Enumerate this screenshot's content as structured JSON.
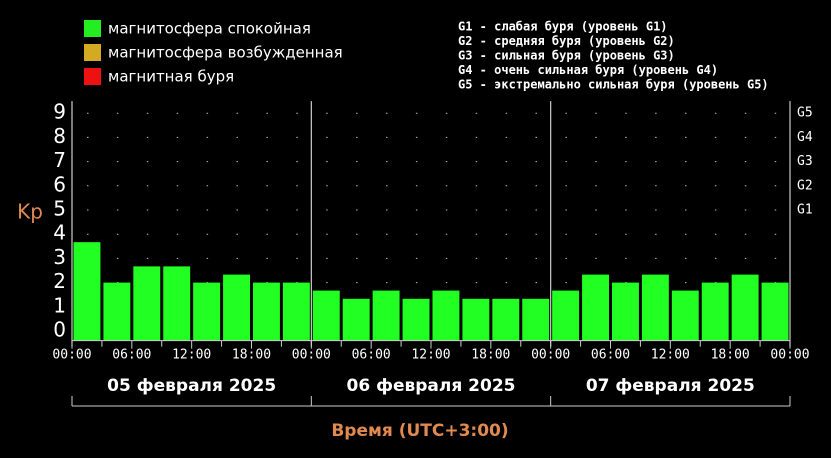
{
  "chart_data": {
    "type": "bar",
    "legend": [
      {
        "label": "магнитосфера спокойная",
        "color": "#22ee22"
      },
      {
        "label": "магнитосфера возбужденная",
        "color": "#d4aa22"
      },
      {
        "label": "магнитная буря",
        "color": "#ee1111"
      }
    ],
    "storm_levels": [
      "G1 - слабая буря (уровень G1)",
      "G2 - средняя буря (уровень G2)",
      "G3 - сильная буря (уровень G3)",
      "G4 - очень сильная буря (уровень G4)",
      "G5 - экстремально сильная буря (уровень G5)"
    ],
    "y_label": "Kp",
    "x_label": "Время (UTC+3:00)",
    "days": [
      "05 февраля 2025",
      "06 февраля 2025",
      "07 февраля 2025"
    ],
    "x": [
      1.5,
      4.5,
      7.5,
      10.5,
      13.5,
      16.5,
      19.5,
      22.5,
      25.5,
      28.5,
      31.5,
      34.5,
      37.5,
      40.5,
      43.5,
      46.5,
      49.5,
      52.5,
      55.5,
      58.5,
      61.5,
      64.5,
      67.5,
      70.5
    ],
    "values": [
      3.67,
      2,
      2.67,
      2.67,
      2,
      2.33,
      2,
      2,
      1.67,
      1.33,
      1.67,
      1.33,
      1.67,
      1.33,
      1.33,
      1.33,
      1.67,
      2.33,
      2,
      2.33,
      1.67,
      2,
      2.33,
      2
    ],
    "color": "#22ff22",
    "xlim": [
      0,
      72
    ],
    "xticks": [
      {
        "value": 0,
        "label": "00:00"
      },
      {
        "value": 6,
        "label": "06:00"
      },
      {
        "value": 12,
        "label": "12:00"
      },
      {
        "value": 18,
        "label": "18:00"
      },
      {
        "value": 24,
        "label": "00:00"
      },
      {
        "value": 30,
        "label": "06:00"
      },
      {
        "value": 36,
        "label": "12:00"
      },
      {
        "value": 42,
        "label": "18:00"
      },
      {
        "value": 48,
        "label": "00:00"
      },
      {
        "value": 54,
        "label": "06:00"
      },
      {
        "value": 60,
        "label": "12:00"
      },
      {
        "value": 66,
        "label": "18:00"
      },
      {
        "value": 72,
        "label": "00:00"
      }
    ],
    "xminorticks": [
      3,
      9,
      15,
      21,
      27,
      33,
      39,
      45,
      51,
      57,
      63,
      69
    ],
    "ylim": [
      -0.4,
      9.5
    ],
    "yticks": [
      0,
      1,
      2,
      3,
      4,
      5,
      6,
      7,
      8,
      9
    ],
    "y2lim": [
      -0.4,
      9.5
    ],
    "y2ticks": [
      {
        "value": 5,
        "label": "G1"
      },
      {
        "value": 6,
        "label": "G2"
      },
      {
        "value": 7,
        "label": "G3"
      },
      {
        "value": 8,
        "label": "G4"
      },
      {
        "value": 9,
        "label": "G5"
      }
    ],
    "day_bounds": [
      0,
      24,
      48,
      72
    ],
    "grid": true
  }
}
